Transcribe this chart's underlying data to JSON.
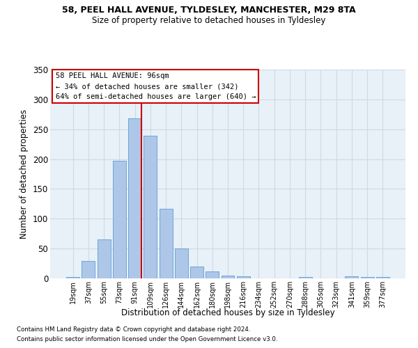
{
  "title1": "58, PEEL HALL AVENUE, TYLDESLEY, MANCHESTER, M29 8TA",
  "title2": "Size of property relative to detached houses in Tyldesley",
  "xlabel": "Distribution of detached houses by size in Tyldesley",
  "ylabel": "Number of detached properties",
  "footer1": "Contains HM Land Registry data © Crown copyright and database right 2024.",
  "footer2": "Contains public sector information licensed under the Open Government Licence v3.0.",
  "categories": [
    "19sqm",
    "37sqm",
    "55sqm",
    "73sqm",
    "91sqm",
    "109sqm",
    "126sqm",
    "144sqm",
    "162sqm",
    "180sqm",
    "198sqm",
    "216sqm",
    "234sqm",
    "252sqm",
    "270sqm",
    "288sqm",
    "305sqm",
    "323sqm",
    "341sqm",
    "359sqm",
    "377sqm"
  ],
  "values": [
    2,
    29,
    65,
    197,
    268,
    239,
    117,
    50,
    20,
    12,
    5,
    4,
    0,
    0,
    0,
    2,
    0,
    0,
    3,
    2,
    2
  ],
  "bar_color": "#aec6e8",
  "bar_edgecolor": "#5a9fd4",
  "annotation_title": "58 PEEL HALL AVENUE: 96sqm",
  "annotation_line2": "← 34% of detached houses are smaller (342)",
  "annotation_line3": "64% of semi-detached houses are larger (640) →",
  "annotation_box_color": "#ffffff",
  "annotation_box_edgecolor": "#cc0000",
  "vline_color": "#cc0000",
  "vline_pos": 4.43,
  "grid_color": "#d0d8e4",
  "bg_color": "#e8f0f8",
  "plot_bg_color": "#e8f0f8",
  "fig_bg_color": "#ffffff",
  "ylim": [
    0,
    350
  ],
  "yticks": [
    0,
    50,
    100,
    150,
    200,
    250,
    300,
    350
  ]
}
